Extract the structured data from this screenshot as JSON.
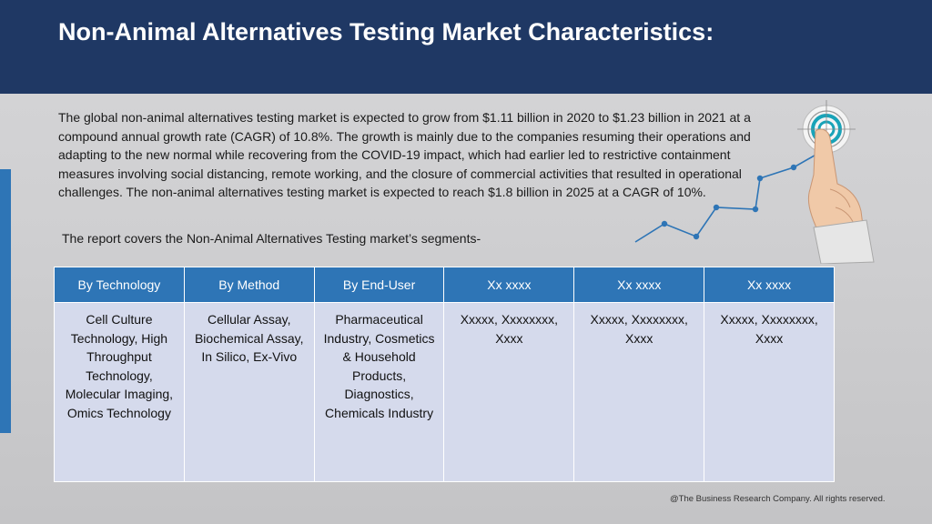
{
  "header": {
    "title": "Non-Animal Alternatives Testing Market Characteristics:"
  },
  "intro": {
    "paragraph": "The global non-animal alternatives testing market is expected to grow from $1.11 billion in 2020 to $1.23 billion in 2021 at a compound annual growth rate (CAGR) of 10.8%. The growth is mainly due to the companies resuming their operations and adapting to the new normal while recovering from the COVID-19 impact, which had earlier led to restrictive containment measures involving social distancing, remote working, and the closure of commercial activities that resulted in operational challenges. The non-animal alternatives testing market is expected to reach $1.8 billion in 2025 at a CAGR of 10%.",
    "segments_note": "The report covers the Non-Animal Alternatives Testing market’s segments-"
  },
  "table": {
    "headers": [
      "By Technology",
      "By Method",
      "By End-User",
      "Xx xxxx",
      "Xx xxxx",
      "Xx xxxx"
    ],
    "cells": [
      "Cell Culture Technology, High Throughput Technology, Molecular Imaging, Omics Technology",
      "Cellular Assay, Biochemical Assay, In Silico, Ex-Vivo",
      "Pharmaceutical Industry, Cosmetics & Household Products, Diagnostics, Chemicals Industry",
      "Xxxxx, Xxxxxxxx, Xxxx",
      "Xxxxx, Xxxxxxxx, Xxxx",
      "Xxxxx, Xxxxxxxx, Xxxx"
    ]
  },
  "decor": {
    "icon": "hand-touching-target-icon",
    "accent": "#2e75b6",
    "header_bg": "#1f3864",
    "cell_bg": "#d5daec"
  },
  "footer": {
    "copyright": "@The Business Research Company. All rights reserved."
  }
}
